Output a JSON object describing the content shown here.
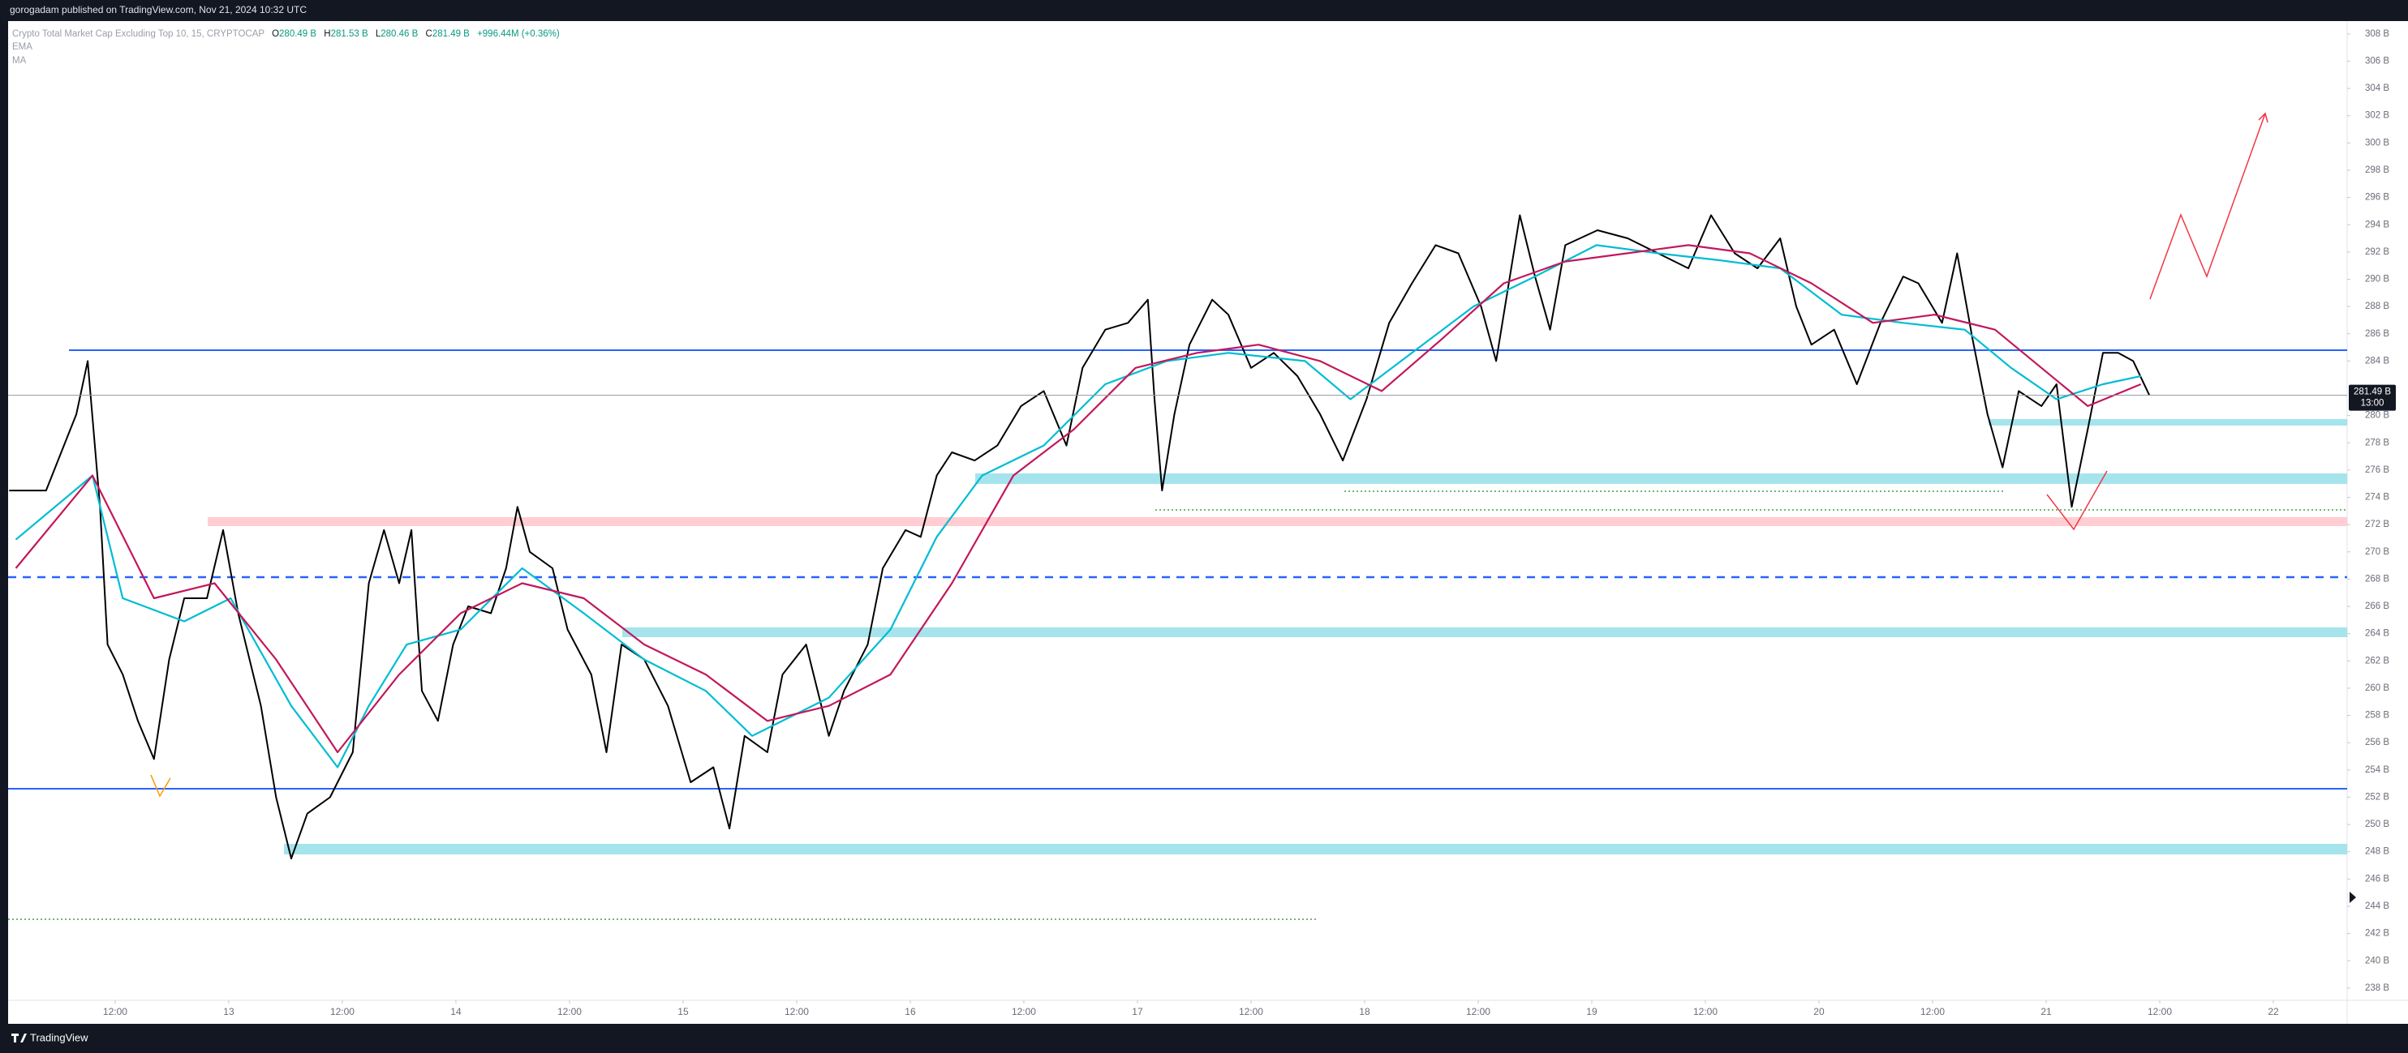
{
  "header": {
    "text": "gorogadam published on TradingView.com, Nov 21, 2024 10:32 UTC"
  },
  "footer": {
    "brand": "TradingView"
  },
  "chart_data": {
    "type": "line",
    "ohlc": [
      {
        "label": "O",
        "value": "280.49 B"
      },
      {
        "label": "H",
        "value": "281.53 B"
      },
      {
        "label": "L",
        "value": "280.46 B"
      },
      {
        "label": "C",
        "value": "281.49 B"
      }
    ],
    "change": "+996.44M (+0.36%)",
    "last_price": {
      "value": 281.49,
      "label": "281.49 B"
    },
    "last_time": "13:00",
    "xlim": [
      0.69,
      247.8
    ],
    "ylim": [
      237.1,
      309.0
    ],
    "grid": false,
    "xticks": [
      {
        "value": 12,
        "label": "12:00"
      },
      {
        "value": 24,
        "label": "13"
      },
      {
        "value": 36,
        "label": "12:00"
      },
      {
        "value": 48,
        "label": "14"
      },
      {
        "value": 60,
        "label": "12:00"
      },
      {
        "value": 72,
        "label": "15"
      },
      {
        "value": 84,
        "label": "12:00"
      },
      {
        "value": 96,
        "label": "16"
      },
      {
        "value": 108,
        "label": "12:00"
      },
      {
        "value": 120,
        "label": "17"
      },
      {
        "value": 132,
        "label": "12:00"
      },
      {
        "value": 144,
        "label": "18"
      },
      {
        "value": 156,
        "label": "12:00"
      },
      {
        "value": 168,
        "label": "19"
      },
      {
        "value": 180,
        "label": "12:00"
      },
      {
        "value": 192,
        "label": "20"
      },
      {
        "value": 204,
        "label": "12:00"
      },
      {
        "value": 216,
        "label": "21"
      },
      {
        "value": 228,
        "label": "12:00"
      },
      {
        "value": 240,
        "label": "22"
      }
    ],
    "yticks": [
      {
        "value": 238,
        "label": "238 B"
      },
      {
        "value": 240,
        "label": "240 B"
      },
      {
        "value": 242,
        "label": "242 B"
      },
      {
        "value": 244,
        "label": "244 B"
      },
      {
        "value": 246,
        "label": "246 B"
      },
      {
        "value": 248,
        "label": "248 B"
      },
      {
        "value": 250,
        "label": "250 B"
      },
      {
        "value": 252,
        "label": "252 B"
      },
      {
        "value": 254,
        "label": "254 B"
      },
      {
        "value": 256,
        "label": "256 B"
      },
      {
        "value": 258,
        "label": "258 B"
      },
      {
        "value": 260,
        "label": "260 B"
      },
      {
        "value": 262,
        "label": "262 B"
      },
      {
        "value": 264,
        "label": "264 B"
      },
      {
        "value": 266,
        "label": "266 B"
      },
      {
        "value": 268,
        "label": "268 B"
      },
      {
        "value": 270,
        "label": "270 B"
      },
      {
        "value": 272,
        "label": "272 B"
      },
      {
        "value": 274,
        "label": "274 B"
      },
      {
        "value": 276,
        "label": "276 B"
      },
      {
        "value": 278,
        "label": "278 B"
      },
      {
        "value": 280,
        "label": "280 B"
      },
      {
        "value": 284,
        "label": "284 B"
      },
      {
        "value": 286,
        "label": "286 B"
      },
      {
        "value": 288,
        "label": "288 B"
      },
      {
        "value": 290,
        "label": "290 B"
      },
      {
        "value": 292,
        "label": "292 B"
      },
      {
        "value": 294,
        "label": "294 B"
      },
      {
        "value": 296,
        "label": "296 B"
      },
      {
        "value": 298,
        "label": "298 B"
      },
      {
        "value": 300,
        "label": "300 B"
      },
      {
        "value": 302,
        "label": "302 B"
      },
      {
        "value": 304,
        "label": "304 B"
      },
      {
        "value": 306,
        "label": "306 B"
      },
      {
        "value": 308,
        "label": "308 B"
      }
    ],
    "series": [
      {
        "name": "Crypto Total Market Cap Excluding Top 10, 15, CRYPTOCAP",
        "color": "#000000",
        "x": [
          0.8,
          4.7,
          7.9,
          9.1,
          10.4,
          11.2,
          12.8,
          14.4,
          16.1,
          17.7,
          19.3,
          21.7,
          23.4,
          25.0,
          27.4,
          29.0,
          30.6,
          32.3,
          34.7,
          37.1,
          38.8,
          40.4,
          42.0,
          43.3,
          44.4,
          46.1,
          47.7,
          49.3,
          51.7,
          53.3,
          54.5,
          55.8,
          58.2,
          59.8,
          62.3,
          63.9,
          65.5,
          67.9,
          70.4,
          72.8,
          75.2,
          76.9,
          78.5,
          80.9,
          82.5,
          85.0,
          87.4,
          89.0,
          91.5,
          93.1,
          95.5,
          97.1,
          98.8,
          100.4,
          102.8,
          105.2,
          107.7,
          110.1,
          112.5,
          114.2,
          116.6,
          119.0,
          121.1,
          121.8,
          122.6,
          123.9,
          125.5,
          127.9,
          129.6,
          132.0,
          134.4,
          136.9,
          139.3,
          141.7,
          144.2,
          146.6,
          149.0,
          151.5,
          153.9,
          156.3,
          157.9,
          160.4,
          162.0,
          163.6,
          165.2,
          168.6,
          171.8,
          175.0,
          178.2,
          180.6,
          183.1,
          185.5,
          187.9,
          189.6,
          191.2,
          193.6,
          196.0,
          198.5,
          200.9,
          202.5,
          205.0,
          206.6,
          208.2,
          209.8,
          211.4,
          213.1,
          215.5,
          217.1,
          218.7,
          220.4,
          222.0,
          223.6,
          225.2,
          226.9
        ],
        "values": [
          274.5,
          274.5,
          280.1,
          284.0,
          273.3,
          263.2,
          261.0,
          257.6,
          254.8,
          262.1,
          266.6,
          266.6,
          271.6,
          265.5,
          258.7,
          252.0,
          247.5,
          250.8,
          252.0,
          255.3,
          267.7,
          271.6,
          267.7,
          271.6,
          259.8,
          257.6,
          263.2,
          266.0,
          265.5,
          268.8,
          273.3,
          270.0,
          268.8,
          264.3,
          261.0,
          255.3,
          263.2,
          262.1,
          258.7,
          253.1,
          254.2,
          249.7,
          256.5,
          255.3,
          261.0,
          263.2,
          256.5,
          259.8,
          263.2,
          268.8,
          271.6,
          271.1,
          275.6,
          277.3,
          276.7,
          277.8,
          280.7,
          281.8,
          277.8,
          283.5,
          286.3,
          286.8,
          288.5,
          281.2,
          274.5,
          280.1,
          285.2,
          288.5,
          287.4,
          283.5,
          284.6,
          282.9,
          280.1,
          276.7,
          281.2,
          286.8,
          289.7,
          292.5,
          291.9,
          288.0,
          284.0,
          294.7,
          290.2,
          286.3,
          292.5,
          293.6,
          293.0,
          291.9,
          290.8,
          294.7,
          291.9,
          290.8,
          293.0,
          288.0,
          285.2,
          286.3,
          282.3,
          286.8,
          290.2,
          289.7,
          286.8,
          291.9,
          285.7,
          280.1,
          276.2,
          281.8,
          280.7,
          282.3,
          273.3,
          279.0,
          284.6,
          284.6,
          284.0,
          281.49
        ]
      },
      {
        "name": "EMA",
        "color": "#00bcd4",
        "x": [
          1.5,
          9.6,
          12.8,
          19.3,
          24.2,
          30.6,
          35.5,
          38.8,
          42.8,
          48.5,
          55.0,
          61.5,
          67.9,
          74.4,
          79.3,
          87.4,
          93.9,
          98.8,
          103.6,
          110.1,
          116.6,
          123.1,
          129.6,
          137.7,
          142.5,
          149.0,
          155.5,
          162.0,
          168.5,
          175.0,
          181.4,
          187.9,
          194.4,
          200.9,
          207.4,
          212.3,
          217.1,
          222.0,
          226.0
        ],
        "values": [
          270.9,
          275.6,
          266.6,
          264.9,
          266.6,
          258.7,
          254.2,
          258.7,
          263.2,
          264.3,
          268.8,
          265.5,
          262.1,
          259.8,
          256.5,
          259.3,
          264.3,
          271.1,
          275.6,
          277.8,
          282.3,
          284.0,
          284.6,
          284.0,
          281.2,
          284.6,
          288.0,
          290.2,
          292.5,
          291.9,
          291.4,
          290.8,
          287.4,
          286.8,
          286.3,
          283.5,
          281.2,
          282.3,
          282.9
        ]
      },
      {
        "name": "MA",
        "color": "#c2185b",
        "x": [
          1.5,
          9.6,
          16.1,
          22.5,
          29.0,
          35.5,
          42.0,
          48.5,
          55.0,
          61.5,
          67.9,
          74.4,
          80.9,
          87.4,
          93.9,
          100.4,
          106.9,
          113.3,
          119.8,
          126.3,
          132.8,
          139.3,
          145.8,
          152.3,
          158.7,
          165.2,
          171.7,
          178.2,
          184.7,
          191.2,
          197.7,
          204.2,
          210.6,
          215.5,
          220.4,
          226.0
        ],
        "values": [
          268.8,
          275.6,
          266.6,
          267.7,
          262.1,
          255.3,
          261.0,
          265.5,
          267.7,
          266.6,
          263.2,
          261.0,
          257.6,
          258.7,
          261.0,
          267.7,
          275.6,
          279.0,
          283.5,
          284.6,
          285.2,
          284.0,
          281.8,
          285.7,
          289.7,
          291.3,
          291.9,
          292.5,
          291.9,
          289.7,
          286.8,
          287.4,
          286.3,
          283.5,
          280.7,
          282.3
        ]
      }
    ]
  }
}
